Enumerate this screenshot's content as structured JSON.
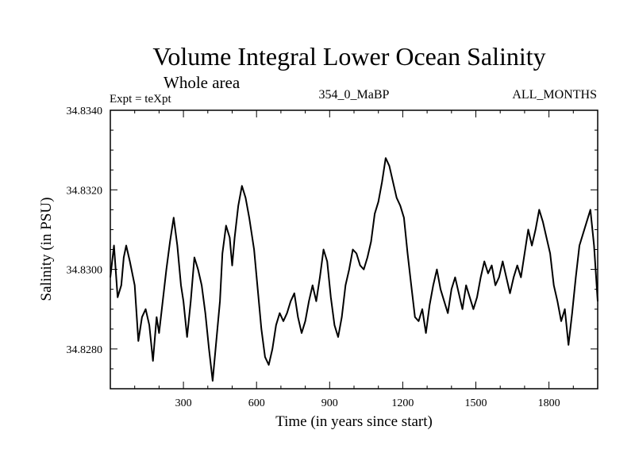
{
  "chart_data": {
    "type": "line",
    "title": "Volume Integral Lower Ocean Salinity",
    "subtitle": "Whole area",
    "annotations": {
      "left": "Expt = teXpt",
      "center": "354_0_MaBP",
      "right": "ALL_MONTHS"
    },
    "xlabel": "Time (in years since start)",
    "ylabel": "Salinity (in PSU)",
    "xlim": [
      0,
      2000
    ],
    "ylim": [
      34.827,
      34.834
    ],
    "x_ticks": [
      300,
      600,
      900,
      1200,
      1500,
      1800
    ],
    "x_tick_labels": [
      "300",
      "600",
      "900",
      "1200",
      "1500",
      "1800"
    ],
    "y_ticks": [
      34.828,
      34.83,
      34.832,
      34.834
    ],
    "y_tick_labels": [
      "34.8280",
      "34.8300",
      "34.8320",
      "34.8340"
    ],
    "grid": false,
    "series": [
      {
        "color": "#000000",
        "x": [
          0,
          15,
          30,
          45,
          55,
          65,
          80,
          100,
          115,
          130,
          145,
          160,
          175,
          190,
          200,
          215,
          230,
          245,
          260,
          275,
          290,
          300,
          315,
          330,
          345,
          360,
          375,
          390,
          405,
          420,
          435,
          450,
          460,
          475,
          490,
          500,
          510,
          525,
          540,
          555,
          570,
          590,
          605,
          620,
          635,
          650,
          665,
          680,
          695,
          710,
          725,
          740,
          755,
          770,
          785,
          800,
          815,
          830,
          845,
          860,
          875,
          890,
          905,
          920,
          935,
          950,
          965,
          980,
          995,
          1010,
          1025,
          1040,
          1055,
          1070,
          1085,
          1100,
          1115,
          1130,
          1145,
          1160,
          1175,
          1190,
          1205,
          1220,
          1235,
          1250,
          1265,
          1280,
          1295,
          1310,
          1325,
          1340,
          1355,
          1370,
          1385,
          1400,
          1415,
          1430,
          1445,
          1460,
          1475,
          1490,
          1505,
          1520,
          1535,
          1550,
          1565,
          1580,
          1595,
          1610,
          1625,
          1640,
          1655,
          1670,
          1685,
          1700,
          1715,
          1730,
          1745,
          1760,
          1775,
          1790,
          1805,
          1820,
          1835,
          1850,
          1865,
          1880,
          1895,
          1910,
          1925,
          1940,
          1955,
          1970,
          1985,
          2000
        ],
        "y": [
          34.8298,
          34.8306,
          34.8293,
          34.8296,
          34.8303,
          34.8306,
          34.8302,
          34.8296,
          34.8282,
          34.8288,
          34.829,
          34.8286,
          34.8277,
          34.8288,
          34.8284,
          34.8292,
          34.83,
          34.8307,
          34.8313,
          34.8306,
          34.8296,
          34.8292,
          34.8283,
          34.8292,
          34.8303,
          34.83,
          34.8296,
          34.8289,
          34.828,
          34.8272,
          34.8282,
          34.8292,
          34.8304,
          34.8311,
          34.8308,
          34.8301,
          34.8308,
          34.8316,
          34.8321,
          34.8318,
          34.8313,
          34.8305,
          34.8295,
          34.8285,
          34.8278,
          34.8276,
          34.828,
          34.8286,
          34.8289,
          34.8287,
          34.8289,
          34.8292,
          34.8294,
          34.8288,
          34.8284,
          34.8287,
          34.8292,
          34.8296,
          34.8292,
          34.8298,
          34.8305,
          34.8302,
          34.8293,
          34.8286,
          34.8283,
          34.8288,
          34.8296,
          34.83,
          34.8305,
          34.8304,
          34.8301,
          34.83,
          34.8303,
          34.8307,
          34.8314,
          34.8317,
          34.8322,
          34.8328,
          34.8326,
          34.8322,
          34.8318,
          34.8316,
          34.8313,
          34.8304,
          34.8296,
          34.8288,
          34.8287,
          34.829,
          34.8284,
          34.8291,
          34.8296,
          34.83,
          34.8295,
          34.8292,
          34.8289,
          34.8295,
          34.8298,
          34.8294,
          34.829,
          34.8296,
          34.8293,
          34.829,
          34.8293,
          34.8298,
          34.8302,
          34.8299,
          34.8301,
          34.8296,
          34.8298,
          34.8302,
          34.8298,
          34.8294,
          34.8298,
          34.8301,
          34.8298,
          34.8304,
          34.831,
          34.8306,
          34.831,
          34.8315,
          34.8312,
          34.8308,
          34.8304,
          34.8296,
          34.8292,
          34.8287,
          34.829,
          34.8281,
          34.8289,
          34.8298,
          34.8306,
          34.8309,
          34.8312,
          34.8315,
          34.8306,
          34.8292
        ]
      }
    ]
  }
}
